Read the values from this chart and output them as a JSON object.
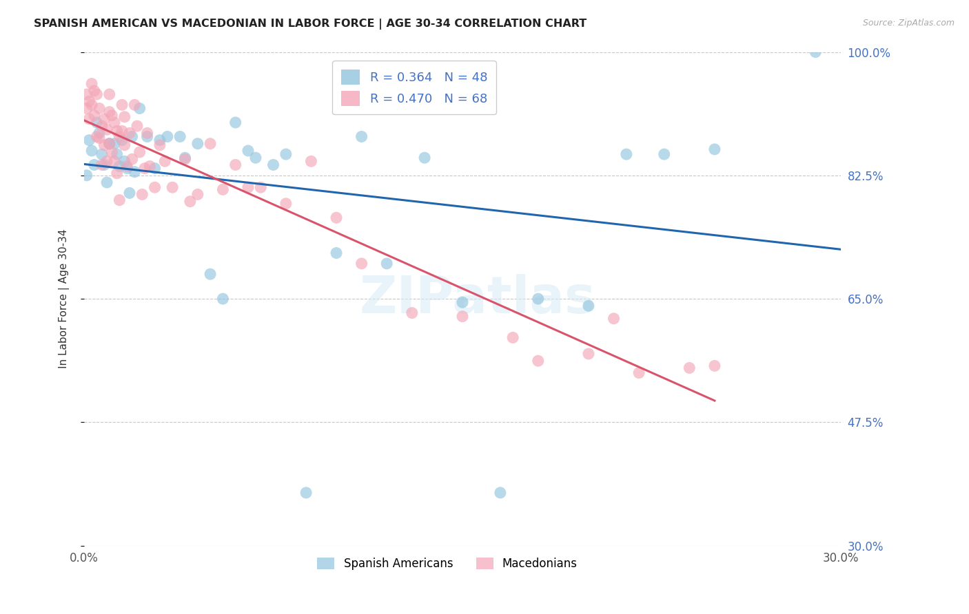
{
  "title": "SPANISH AMERICAN VS MACEDONIAN IN LABOR FORCE | AGE 30-34 CORRELATION CHART",
  "source": "Source: ZipAtlas.com",
  "ylabel": "In Labor Force | Age 30-34",
  "x_min": 0.0,
  "x_max": 0.3,
  "y_min": 0.3,
  "y_max": 1.0,
  "y_ticks": [
    0.3,
    0.475,
    0.65,
    0.825,
    1.0
  ],
  "y_tick_labels": [
    "30.0%",
    "47.5%",
    "65.0%",
    "82.5%",
    "100.0%"
  ],
  "x_ticks": [
    0.0,
    0.05,
    0.1,
    0.15,
    0.2,
    0.25,
    0.3
  ],
  "x_tick_labels": [
    "0.0%",
    "",
    "",
    "",
    "",
    "",
    "30.0%"
  ],
  "blue_color": "#92c5de",
  "pink_color": "#f4a6b8",
  "trendline_blue": "#2166ac",
  "trendline_pink": "#d9536b",
  "legend_blue_label": "R = 0.364   N = 48",
  "legend_pink_label": "R = 0.470   N = 68",
  "blue_x": [
    0.001,
    0.002,
    0.003,
    0.004,
    0.005,
    0.006,
    0.007,
    0.008,
    0.009,
    0.01,
    0.01,
    0.012,
    0.013,
    0.014,
    0.015,
    0.016,
    0.017,
    0.018,
    0.019,
    0.02,
    0.022,
    0.025,
    0.028,
    0.03,
    0.033,
    0.038,
    0.04,
    0.045,
    0.05,
    0.055,
    0.06,
    0.065,
    0.068,
    0.075,
    0.08,
    0.088,
    0.1,
    0.11,
    0.12,
    0.135,
    0.15,
    0.165,
    0.18,
    0.2,
    0.215,
    0.23,
    0.25,
    0.29
  ],
  "blue_y": [
    0.825,
    0.875,
    0.86,
    0.84,
    0.9,
    0.885,
    0.855,
    0.84,
    0.815,
    0.87,
    0.87,
    0.87,
    0.855,
    0.838,
    0.875,
    0.845,
    0.835,
    0.8,
    0.88,
    0.83,
    0.92,
    0.88,
    0.835,
    0.875,
    0.88,
    0.88,
    0.85,
    0.87,
    0.685,
    0.65,
    0.9,
    0.86,
    0.85,
    0.84,
    0.855,
    0.375,
    0.715,
    0.88,
    0.7,
    0.85,
    0.645,
    0.375,
    0.65,
    0.64,
    0.855,
    0.855,
    0.862,
    1.0
  ],
  "pink_x": [
    0.001,
    0.001,
    0.002,
    0.002,
    0.003,
    0.003,
    0.004,
    0.004,
    0.005,
    0.005,
    0.006,
    0.006,
    0.007,
    0.007,
    0.008,
    0.008,
    0.009,
    0.009,
    0.01,
    0.01,
    0.01,
    0.011,
    0.011,
    0.012,
    0.012,
    0.013,
    0.013,
    0.014,
    0.014,
    0.015,
    0.015,
    0.016,
    0.016,
    0.017,
    0.018,
    0.019,
    0.02,
    0.021,
    0.022,
    0.023,
    0.024,
    0.025,
    0.026,
    0.028,
    0.03,
    0.032,
    0.035,
    0.04,
    0.042,
    0.045,
    0.05,
    0.055,
    0.06,
    0.065,
    0.07,
    0.08,
    0.09,
    0.1,
    0.11,
    0.13,
    0.15,
    0.17,
    0.18,
    0.2,
    0.21,
    0.22,
    0.24,
    0.25
  ],
  "pink_y": [
    0.94,
    0.92,
    0.93,
    0.905,
    0.955,
    0.925,
    0.945,
    0.91,
    0.94,
    0.88,
    0.92,
    0.878,
    0.895,
    0.84,
    0.905,
    0.868,
    0.89,
    0.845,
    0.94,
    0.915,
    0.87,
    0.91,
    0.858,
    0.9,
    0.845,
    0.888,
    0.828,
    0.88,
    0.79,
    0.925,
    0.888,
    0.908,
    0.868,
    0.838,
    0.885,
    0.848,
    0.925,
    0.895,
    0.858,
    0.798,
    0.835,
    0.885,
    0.838,
    0.808,
    0.868,
    0.845,
    0.808,
    0.848,
    0.788,
    0.798,
    0.87,
    0.805,
    0.84,
    0.808,
    0.808,
    0.785,
    0.845,
    0.765,
    0.7,
    0.63,
    0.625,
    0.595,
    0.562,
    0.572,
    0.622,
    0.545,
    0.552,
    0.555
  ]
}
